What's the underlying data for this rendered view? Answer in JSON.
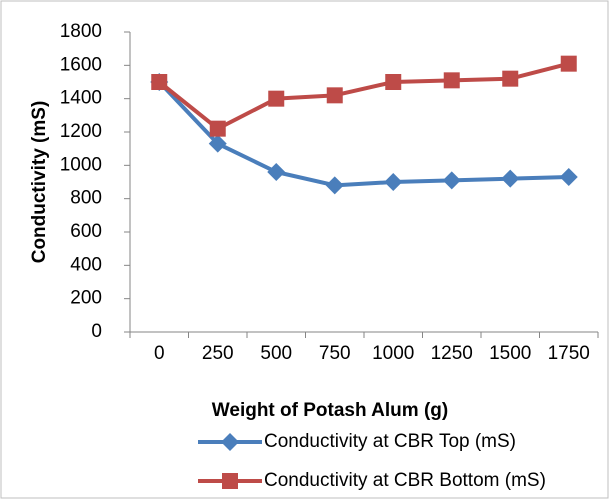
{
  "chart_data": {
    "type": "line",
    "x_label": "Weight of Potash Alum (g)",
    "y_label": "Conductivity (mS)",
    "categories": [
      "0",
      "250",
      "500",
      "750",
      "1000",
      "1250",
      "1500",
      "1750"
    ],
    "series": [
      {
        "name": "Conductivity at CBR Top (mS)",
        "color": "#4a7ebb",
        "marker": "diamond",
        "values": [
          1500,
          1130,
          960,
          880,
          900,
          910,
          920,
          930
        ]
      },
      {
        "name": "Conductivity at CBR Bottom (mS)",
        "color": "#be4b48",
        "marker": "square",
        "values": [
          1500,
          1220,
          1400,
          1420,
          1500,
          1510,
          1520,
          1610
        ]
      }
    ],
    "ylim": [
      0,
      1800
    ],
    "yticks": [
      0,
      200,
      400,
      600,
      800,
      1000,
      1200,
      1400,
      1600,
      1800
    ],
    "grid": false,
    "legend": "bottom"
  }
}
